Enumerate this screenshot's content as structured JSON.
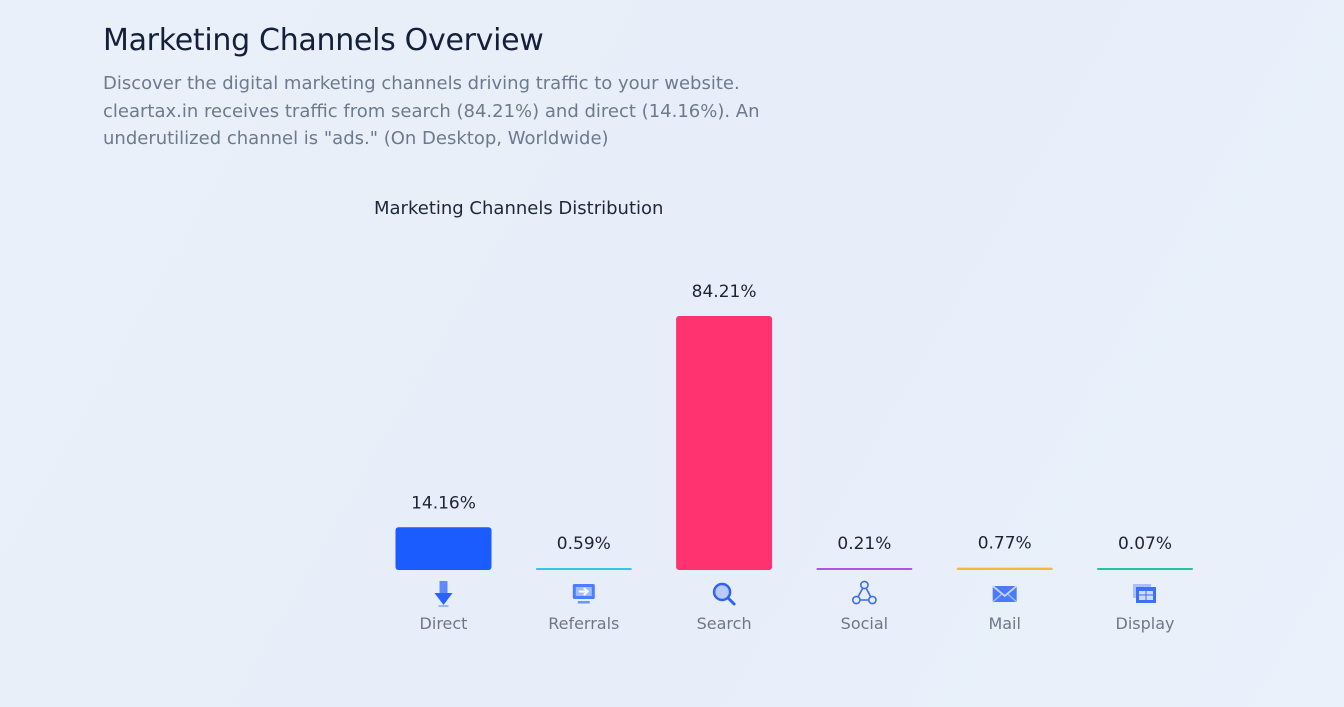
{
  "header": {
    "title": "Marketing Channels Overview",
    "description": "Discover the digital marketing channels driving traffic to your website. cleartax.in receives traffic from search (84.21%) and direct (14.16%). An underutilized channel is \"ads.\" (On Desktop, Worldwide)"
  },
  "chart_data": {
    "type": "bar",
    "title": "Marketing Channels Distribution",
    "xlabel": "",
    "ylabel": "",
    "unit": "%",
    "grid": false,
    "legend": "none",
    "ylim": [
      0,
      84.21
    ],
    "categories": [
      "Direct",
      "Referrals",
      "Search",
      "Social",
      "Mail",
      "Display"
    ],
    "values": [
      14.16,
      0.59,
      84.21,
      0.21,
      0.77,
      0.07
    ],
    "value_labels": [
      "14.16%",
      "0.59%",
      "84.21%",
      "0.21%",
      "0.77%",
      "0.07%"
    ],
    "colors": [
      "#1a5cff",
      "#2fc8e8",
      "#ff3370",
      "#b551e8",
      "#f5b93a",
      "#22c3a0"
    ],
    "icons": [
      "arrow-down-icon",
      "referral-arrow-icon",
      "search-icon",
      "share-network-icon",
      "mail-envelope-icon",
      "display-window-icon"
    ]
  }
}
